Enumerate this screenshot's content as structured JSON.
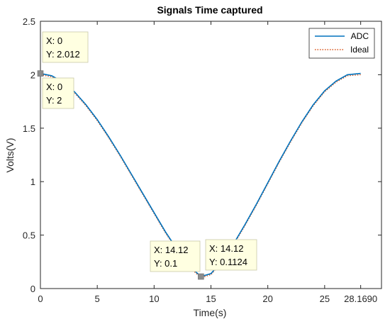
{
  "chart_data": {
    "type": "line",
    "title": "Signals Time captured",
    "xlabel": "Time(s)",
    "ylabel": "Volts(V)",
    "xlim": [
      0,
      30
    ],
    "ylim": [
      0,
      2.5
    ],
    "x_ticks": [
      0,
      5,
      10,
      15,
      20,
      25,
      28.169
    ],
    "x_tick_labels": [
      "0",
      "5",
      "10",
      "15",
      "20",
      "25",
      "28.1690"
    ],
    "y_ticks": [
      0,
      0.5,
      1,
      1.5,
      2,
      2.5
    ],
    "y_tick_labels": [
      "0",
      "0.5",
      "1",
      "1.5",
      "2",
      "2.5"
    ],
    "grid": false,
    "legend_position": "top-right",
    "series": [
      {
        "name": "ADC",
        "color": "#0072bd",
        "style": "solid",
        "x": [
          0,
          1,
          2,
          3,
          4,
          5,
          6,
          7,
          8,
          9,
          10,
          11,
          12,
          13,
          14.12,
          15,
          16,
          17,
          18,
          19,
          20,
          21,
          22,
          23,
          24,
          25,
          26,
          27,
          28.169
        ],
        "y": [
          2.012,
          1.99,
          1.93,
          1.84,
          1.72,
          1.58,
          1.42,
          1.25,
          1.07,
          0.89,
          0.71,
          0.53,
          0.37,
          0.22,
          0.1124,
          0.14,
          0.26,
          0.42,
          0.6,
          0.79,
          0.99,
          1.19,
          1.38,
          1.56,
          1.72,
          1.85,
          1.94,
          2.0,
          2.012
        ]
      },
      {
        "name": "Ideal",
        "color": "#d95319",
        "style": "dotted",
        "x": [
          0,
          1,
          2,
          3,
          4,
          5,
          6,
          7,
          8,
          9,
          10,
          11,
          12,
          13,
          14.12,
          15,
          16,
          17,
          18,
          19,
          20,
          21,
          22,
          23,
          24,
          25,
          26,
          27,
          28.169
        ],
        "y": [
          2.0,
          1.98,
          1.92,
          1.83,
          1.71,
          1.57,
          1.41,
          1.24,
          1.06,
          0.88,
          0.7,
          0.52,
          0.36,
          0.21,
          0.1,
          0.13,
          0.25,
          0.41,
          0.59,
          0.78,
          0.98,
          1.18,
          1.37,
          1.55,
          1.71,
          1.84,
          1.93,
          1.99,
          2.0
        ]
      }
    ],
    "datatips": [
      {
        "x": 0,
        "y": 2.012,
        "x_text": "X: 0",
        "y_text": "Y: 2.012"
      },
      {
        "x": 0,
        "y": 2,
        "x_text": "X: 0",
        "y_text": "Y: 2"
      },
      {
        "x": 14.12,
        "y": 0.1,
        "x_text": "X: 14.12",
        "y_text": "Y: 0.1"
      },
      {
        "x": 14.12,
        "y": 0.1124,
        "x_text": "X: 14.12",
        "y_text": "Y: 0.1124"
      }
    ]
  }
}
